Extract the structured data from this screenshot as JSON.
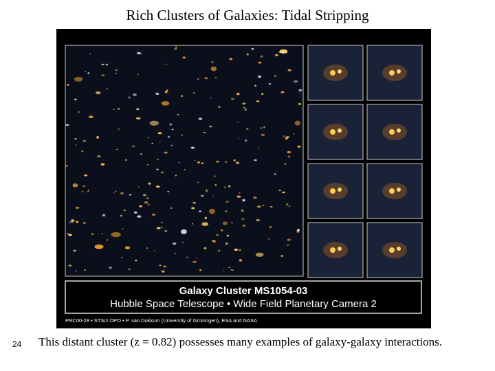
{
  "slide": {
    "title": "Rich Clusters of Galaxies: Tidal Stripping",
    "image": {
      "heading": "Galaxy Cluster MS1054-03",
      "subheading": "Hubble Space Telescope • Wide Field Planetary Camera 2",
      "credit": "PRC00-28 • STScI OPO • P. van Dokkum (University of Groningen), ESA and NASA"
    },
    "caption": "This distant cluster (z = 0.82) possesses many examples of galaxy-galaxy interactions.",
    "page_number": "24"
  }
}
